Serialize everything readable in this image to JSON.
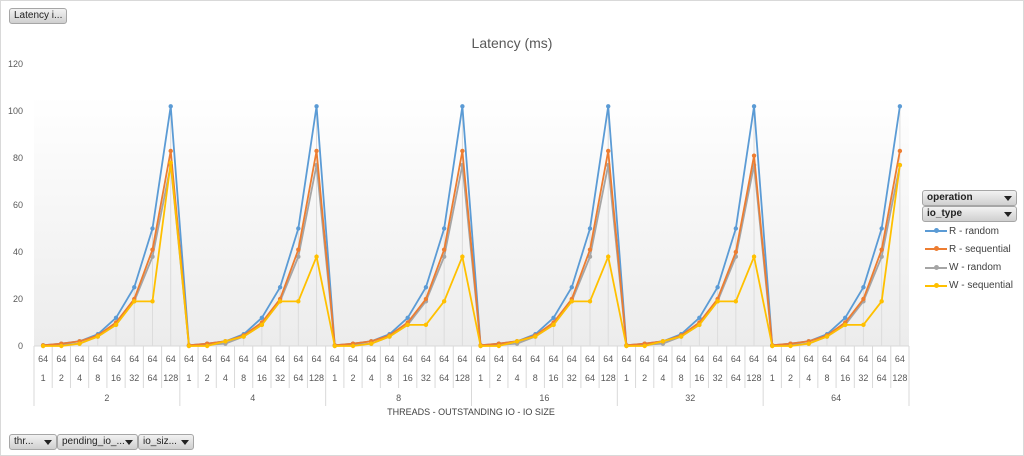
{
  "filters": {
    "top_button": "Latency i...",
    "operation": "operation",
    "io_type": "io_type",
    "bottom": [
      "thr...",
      "pending_io_...",
      "io_siz..."
    ]
  },
  "chart_data": {
    "type": "line",
    "title": "Latency (ms)",
    "xlabel": "THREADS - OUTSTANDING IO - IO SIZE",
    "ylabel": "",
    "ylim": [
      0,
      120
    ],
    "yticks": [
      "0",
      "20",
      "40",
      "60",
      "80",
      "100",
      "120"
    ],
    "grid": false,
    "legend_position": "right",
    "groups": [
      "2",
      "4",
      "8",
      "16",
      "32",
      "64"
    ],
    "outstanding": [
      "1",
      "2",
      "4",
      "8",
      "16",
      "32",
      "64",
      "128"
    ],
    "io_size": "64",
    "series": [
      {
        "name": "R - random",
        "color": "#5b9bd5",
        "values": [
          0.3,
          1,
          2,
          5,
          12,
          25,
          50,
          102,
          0.3,
          1,
          2,
          5,
          12,
          25,
          50,
          102,
          0.3,
          1,
          2,
          5,
          12,
          25,
          50,
          102,
          0.3,
          1,
          2,
          5,
          12,
          25,
          50,
          102,
          0.3,
          1,
          2,
          5,
          12,
          25,
          50,
          102,
          0.3,
          1,
          2,
          5,
          12,
          25,
          50,
          102
        ]
      },
      {
        "name": "R - sequential",
        "color": "#ed7d31",
        "values": [
          0.3,
          1,
          2,
          4.5,
          10,
          20,
          41,
          83,
          0.3,
          1,
          2,
          4.5,
          10,
          20,
          41,
          83,
          0.3,
          1,
          2,
          4.5,
          10,
          20,
          41,
          83,
          0.3,
          1,
          2,
          4.5,
          10,
          20,
          41,
          83,
          0.3,
          1,
          2,
          4.5,
          10,
          20,
          40,
          81,
          0.3,
          1,
          2,
          4.5,
          10,
          20,
          41,
          83
        ]
      },
      {
        "name": "W - random",
        "color": "#a5a5a5",
        "values": [
          0,
          0.5,
          1,
          4,
          9,
          19,
          38,
          77,
          0,
          0.5,
          1,
          4,
          9,
          19,
          38,
          77,
          0,
          0.5,
          1,
          4,
          9,
          19,
          38,
          77,
          0,
          0.5,
          1,
          4,
          9,
          19,
          38,
          77,
          0,
          0.5,
          1,
          4,
          9,
          19,
          38,
          77,
          0,
          0.5,
          1,
          4,
          9,
          19,
          38,
          77
        ]
      },
      {
        "name": "W - sequential",
        "color": "#ffc000",
        "values": [
          0,
          0,
          1,
          4,
          9,
          19,
          19,
          78,
          0,
          0,
          2,
          4,
          9,
          19,
          19,
          38,
          0,
          0,
          1,
          4,
          9,
          9,
          19,
          38,
          0,
          0,
          2,
          4,
          9,
          19,
          19,
          38,
          0,
          0,
          2,
          4,
          9,
          19,
          19,
          38,
          0,
          0,
          1,
          4,
          9,
          9,
          19,
          77
        ]
      }
    ]
  }
}
